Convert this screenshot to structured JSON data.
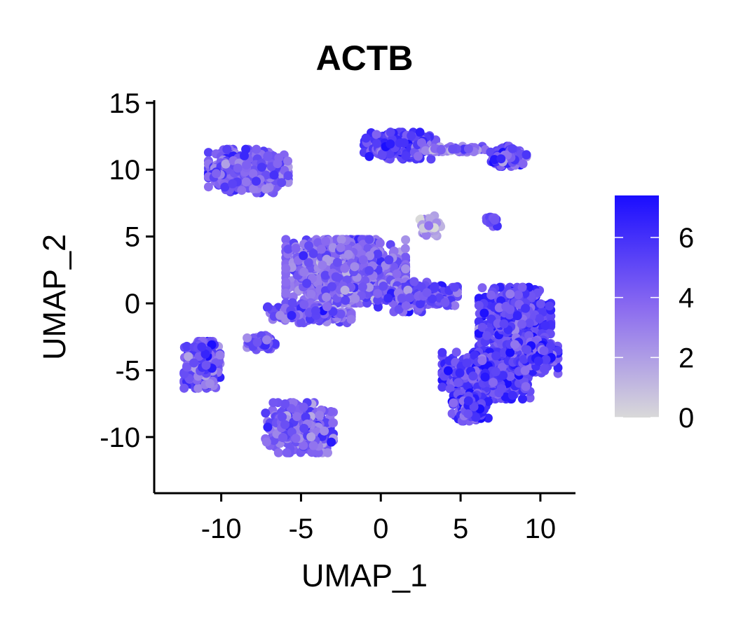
{
  "chart_data": {
    "type": "scatter",
    "title": "ACTB",
    "xlabel": "UMAP_1",
    "ylabel": "UMAP_2",
    "xlim": [
      -14.2,
      12.2
    ],
    "ylim": [
      -14.2,
      15.2
    ],
    "xticks": [
      -10,
      -5,
      0,
      5,
      10
    ],
    "yticks": [
      -10,
      -5,
      0,
      5,
      10,
      15
    ],
    "xtick_labels": [
      "-10",
      "-5",
      "0",
      "5",
      "10"
    ],
    "ytick_labels": [
      "-10",
      "-5",
      "0",
      "5",
      "10",
      "15"
    ],
    "grid": false,
    "legend": {
      "placement": "right",
      "title": "",
      "min": 0,
      "max": 7.4,
      "ticks": [
        0,
        2,
        4,
        6
      ],
      "tick_labels": [
        "0",
        "2",
        "4",
        "6"
      ],
      "color_low": "#d9d9d9",
      "color_mid": "#8a6af0",
      "color_high": "#1a0dff"
    },
    "clusters": [
      {
        "center": [
          -8.3,
          9.9
        ],
        "spread": [
          2.0,
          1.3
        ],
        "n": 650,
        "expression": 4.3
      },
      {
        "center": [
          -11.2,
          -4.6
        ],
        "spread": [
          0.9,
          1.4
        ],
        "n": 380,
        "expression": 4.6
      },
      {
        "center": [
          -5.1,
          -9.3
        ],
        "spread": [
          1.7,
          1.5
        ],
        "n": 520,
        "expression": 4.1
      },
      {
        "center": [
          -7.5,
          -3.0
        ],
        "spread": [
          0.7,
          0.5
        ],
        "n": 80,
        "expression": 4.4
      },
      {
        "center": [
          1.2,
          11.8
        ],
        "spread": [
          1.8,
          0.8
        ],
        "n": 380,
        "expression": 5.2
      },
      {
        "center": [
          4.6,
          11.5
        ],
        "spread": [
          1.6,
          0.2
        ],
        "n": 60,
        "expression": 3.2
      },
      {
        "center": [
          8.0,
          11.0
        ],
        "spread": [
          0.9,
          0.6
        ],
        "n": 130,
        "expression": 5.0
      },
      {
        "center": [
          3.0,
          5.8
        ],
        "spread": [
          0.6,
          0.6
        ],
        "n": 70,
        "expression": 1.6
      },
      {
        "center": [
          7.0,
          6.2
        ],
        "spread": [
          0.3,
          0.4
        ],
        "n": 20,
        "expression": 4.5
      },
      {
        "center": [
          -2.2,
          2.4
        ],
        "spread": [
          3.0,
          1.9
        ],
        "n": 1600,
        "expression": 3.6
      },
      {
        "center": [
          -4.6,
          -0.7
        ],
        "spread": [
          2.2,
          0.6
        ],
        "n": 220,
        "expression": 4.3
      },
      {
        "center": [
          2.3,
          0.5
        ],
        "spread": [
          2.0,
          0.9
        ],
        "n": 260,
        "expression": 4.6
      },
      {
        "center": [
          8.4,
          -1.8
        ],
        "spread": [
          1.8,
          2.4
        ],
        "n": 900,
        "expression": 5.3
      },
      {
        "center": [
          6.6,
          -5.4
        ],
        "spread": [
          2.2,
          1.4
        ],
        "n": 900,
        "expression": 5.3
      },
      {
        "center": [
          5.6,
          -7.8
        ],
        "spread": [
          0.9,
          0.8
        ],
        "n": 200,
        "expression": 5.6
      },
      {
        "center": [
          9.6,
          -4.0
        ],
        "spread": [
          1.2,
          1.0
        ],
        "n": 250,
        "expression": 5.2
      }
    ]
  }
}
